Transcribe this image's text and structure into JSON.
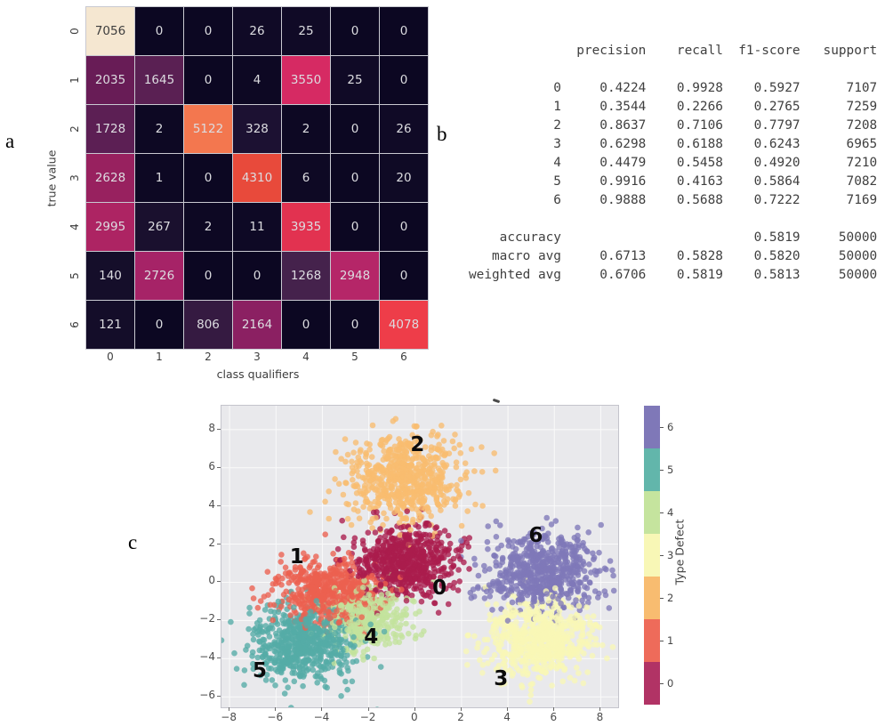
{
  "panels": {
    "a": "a",
    "b": "b",
    "c": "c"
  },
  "chart_data": [
    {
      "id": "confusion_matrix",
      "type": "heatmap",
      "xlabel": "class qualifiers",
      "ylabel": "true value",
      "x_ticks": [
        "0",
        "1",
        "2",
        "3",
        "4",
        "5",
        "6"
      ],
      "y_ticks": [
        "0",
        "1",
        "2",
        "3",
        "4",
        "5",
        "6"
      ],
      "values": [
        [
          7056,
          0,
          0,
          26,
          25,
          0,
          0
        ],
        [
          2035,
          1645,
          0,
          4,
          3550,
          25,
          0
        ],
        [
          1728,
          2,
          5122,
          328,
          2,
          0,
          26
        ],
        [
          2628,
          1,
          0,
          4310,
          6,
          0,
          20
        ],
        [
          2995,
          267,
          2,
          11,
          3935,
          0,
          0
        ],
        [
          140,
          2726,
          0,
          0,
          1268,
          2948,
          0
        ],
        [
          121,
          0,
          806,
          2164,
          0,
          0,
          4078
        ]
      ],
      "cell_colors": [
        [
          "#f5e7d1",
          "#0c0722",
          "#0c0722",
          "#100a26",
          "#100a26",
          "#0c0722",
          "#0c0722"
        ],
        [
          "#681c56",
          "#5a2053",
          "#0c0722",
          "#0d0823",
          "#d62a63",
          "#100a26",
          "#0c0722"
        ],
        [
          "#5c1f54",
          "#0d0823",
          "#f3774f",
          "#1c1132",
          "#0d0823",
          "#0c0722",
          "#100a26"
        ],
        [
          "#98215f",
          "#0d0823",
          "#0c0722",
          "#e84a3b",
          "#0e0924",
          "#0c0722",
          "#0f0a25"
        ],
        [
          "#ad2463",
          "#1a102e",
          "#0d0823",
          "#0e0925",
          "#e23250",
          "#0c0722",
          "#0c0722"
        ],
        [
          "#150e2a",
          "#a62367",
          "#0c0722",
          "#0c0722",
          "#45224c",
          "#b52668",
          "#0c0722"
        ],
        [
          "#140d29",
          "#0c0722",
          "#351a41",
          "#8b2062",
          "#0c0722",
          "#0c0722",
          "#ee3d49"
        ]
      ],
      "grid_color": "#c9c9d1",
      "max_value": 7056
    },
    {
      "id": "classification_report",
      "type": "table",
      "columns": [
        "precision",
        "recall",
        "f1-score",
        "support"
      ],
      "rows": [
        {
          "label": "0",
          "precision": "0.4224",
          "recall": "0.9928",
          "f1": "0.5927",
          "support": "7107"
        },
        {
          "label": "1",
          "precision": "0.3544",
          "recall": "0.2266",
          "f1": "0.2765",
          "support": "7259"
        },
        {
          "label": "2",
          "precision": "0.8637",
          "recall": "0.7106",
          "f1": "0.7797",
          "support": "7208"
        },
        {
          "label": "3",
          "precision": "0.6298",
          "recall": "0.6188",
          "f1": "0.6243",
          "support": "6965"
        },
        {
          "label": "4",
          "precision": "0.4479",
          "recall": "0.5458",
          "f1": "0.4920",
          "support": "7210"
        },
        {
          "label": "5",
          "precision": "0.9916",
          "recall": "0.4163",
          "f1": "0.5864",
          "support": "7082"
        },
        {
          "label": "6",
          "precision": "0.9888",
          "recall": "0.5688",
          "f1": "0.7222",
          "support": "7169"
        }
      ],
      "summary": [
        {
          "label": "accuracy",
          "precision": "",
          "recall": "",
          "f1": "0.5819",
          "support": "50000"
        },
        {
          "label": "macro avg",
          "precision": "0.6713",
          "recall": "0.5828",
          "f1": "0.5820",
          "support": "50000"
        },
        {
          "label": "weighted avg",
          "precision": "0.6706",
          "recall": "0.5819",
          "f1": "0.5813",
          "support": "50000"
        }
      ]
    },
    {
      "id": "cluster_scatter",
      "type": "scatter",
      "xlim": [
        -8.35,
        8.75
      ],
      "ylim": [
        -6.55,
        9.25
      ],
      "x_ticks": [
        -8,
        -6,
        -4,
        -2,
        0,
        2,
        4,
        6,
        8
      ],
      "y_ticks": [
        -6,
        -4,
        -2,
        0,
        2,
        4,
        6,
        8
      ],
      "grid": true,
      "background": "#e9e9ec",
      "grid_line_color": "#fafafa",
      "point_alpha": 0.78,
      "point_radius": 3.3,
      "clusters": [
        {
          "label": "0",
          "color": "#ab1c4d",
          "center": [
            -0.4,
            1.1
          ],
          "std": [
            1.05,
            0.9
          ],
          "count": 650,
          "annotation": [
            1.05,
            -0.35
          ]
        },
        {
          "label": "1",
          "color": "#ec6050",
          "center": [
            -3.7,
            -0.5
          ],
          "std": [
            1.05,
            0.9
          ],
          "count": 550,
          "annotation": [
            -5.1,
            1.3
          ]
        },
        {
          "label": "2",
          "color": "#f8bc70",
          "center": [
            -0.4,
            5.4
          ],
          "std": [
            1.25,
            1.15
          ],
          "count": 650,
          "annotation": [
            0.1,
            7.15
          ]
        },
        {
          "label": "3",
          "color": "#f8f7b6",
          "center": [
            5.4,
            -3.0
          ],
          "std": [
            1.15,
            1.0
          ],
          "count": 650,
          "annotation": [
            3.7,
            -5.1
          ]
        },
        {
          "label": "4",
          "color": "#c3e39c",
          "center": [
            -2.1,
            -1.9
          ],
          "std": [
            0.9,
            0.85
          ],
          "count": 420,
          "annotation": [
            -1.9,
            -2.9
          ]
        },
        {
          "label": "5",
          "color": "#55aca6",
          "center": [
            -4.8,
            -3.2
          ],
          "std": [
            1.15,
            0.95
          ],
          "count": 650,
          "annotation": [
            -6.7,
            -4.7
          ]
        },
        {
          "label": "6",
          "color": "#7f78b8",
          "center": [
            5.5,
            0.5
          ],
          "std": [
            1.2,
            1.05
          ],
          "count": 650,
          "annotation": [
            5.2,
            2.4
          ]
        }
      ],
      "colorbar": {
        "label": "Type Defect",
        "ticks": [
          "0",
          "1",
          "2",
          "3",
          "4",
          "5",
          "6"
        ],
        "colors": [
          "#b13365",
          "#ee6b5a",
          "#f8bc70",
          "#f8f7b6",
          "#c5e49e",
          "#62b6ab",
          "#7f78b8"
        ]
      }
    }
  ]
}
